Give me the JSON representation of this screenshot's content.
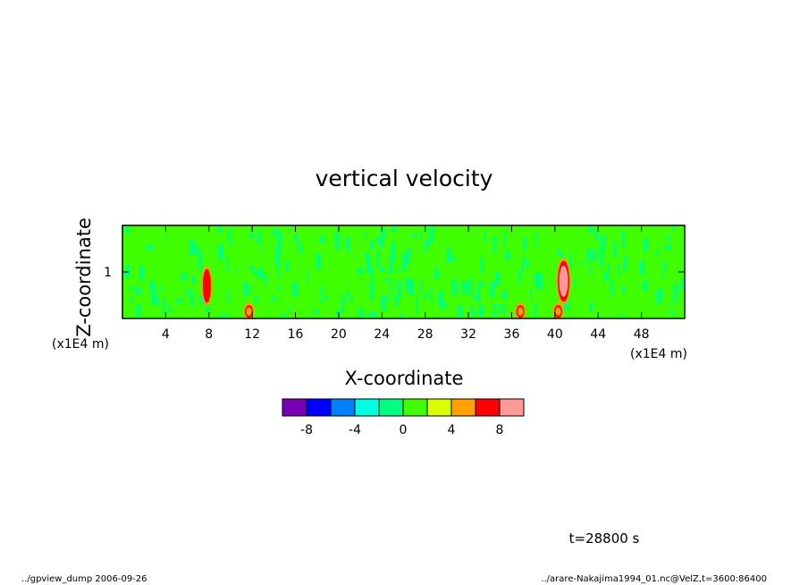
{
  "chart_data": {
    "type": "heatmap",
    "title": "vertical velocity",
    "xlabel": "X-coordinate",
    "ylabel": "Z-coordinate",
    "x_unit": "(x1E4 m)",
    "y_unit": "(x1E4 m)",
    "xlim": [
      0,
      52
    ],
    "ylim": [
      0,
      2
    ],
    "x_ticks": [
      4,
      8,
      12,
      16,
      20,
      24,
      28,
      32,
      36,
      40,
      44,
      48
    ],
    "y_ticks": [
      1
    ],
    "colorbar": {
      "levels": [
        -10,
        -8,
        -6,
        -4,
        -2,
        0,
        2,
        4,
        6,
        8,
        10
      ],
      "tick_labels": [
        -8,
        -4,
        0,
        4,
        8
      ],
      "colors": [
        "#7a00b8",
        "#0000ff",
        "#0080ff",
        "#00ffe0",
        "#00ff80",
        "#40ff00",
        "#d8ff00",
        "#ffa000",
        "#ff0000",
        "#ff9898"
      ]
    },
    "background_value_band": [
      0,
      2
    ],
    "notable_features": [
      {
        "x": 7.8,
        "z": 0.7,
        "value": 8
      },
      {
        "x": 11.7,
        "z": 0.15,
        "value": 6
      },
      {
        "x": 36.8,
        "z": 0.15,
        "value": 6
      },
      {
        "x": 40.8,
        "z": 0.8,
        "value": 10
      },
      {
        "x": 40.3,
        "z": 0.15,
        "value": 6
      }
    ]
  },
  "annotations": {
    "time": "t=28800 s",
    "footer_left": "../gpview_dump  2006-09-26",
    "footer_right": "../arare-Nakajima1994_01.nc@VelZ,t=3600:86400"
  }
}
